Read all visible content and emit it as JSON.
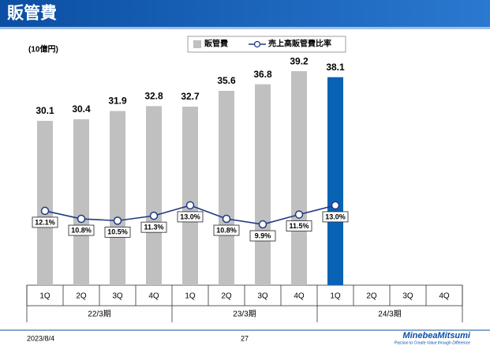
{
  "header": {
    "title": "販管費"
  },
  "chart_data": {
    "type": "bar_line",
    "unit_label": "(10億円)",
    "categories": [
      "1Q",
      "2Q",
      "3Q",
      "4Q",
      "1Q",
      "2Q",
      "3Q",
      "4Q",
      "1Q",
      "2Q",
      "3Q",
      "4Q"
    ],
    "groups": [
      "22/3期",
      "23/3期",
      "24/3期"
    ],
    "series": [
      {
        "name": "販管費",
        "type": "bar",
        "color": "#c0c0c0",
        "colors": [
          "#c0c0c0",
          "#c0c0c0",
          "#c0c0c0",
          "#c0c0c0",
          "#c0c0c0",
          "#c0c0c0",
          "#c0c0c0",
          "#c0c0c0",
          "#0a62b4",
          "#c0c0c0",
          "#c0c0c0",
          "#c0c0c0"
        ],
        "values": [
          30.1,
          30.4,
          31.9,
          32.8,
          32.7,
          35.6,
          36.8,
          39.2,
          38.1,
          null,
          null,
          null
        ]
      },
      {
        "name": "売上高販管費比率",
        "type": "line",
        "axis": "y2",
        "color": "#1f3a85",
        "values": [
          12.1,
          10.8,
          10.5,
          11.3,
          13.0,
          10.8,
          9.9,
          11.5,
          13.0,
          null,
          null,
          null
        ],
        "value_labels": [
          "12.1%",
          "10.8%",
          "10.5%",
          "11.3%",
          "13.0%",
          "10.8%",
          "9.9%",
          "11.5%",
          "13.0%",
          null,
          null,
          null
        ]
      }
    ],
    "ylim": [
      0,
      45
    ],
    "y2lim": [
      0,
      40
    ],
    "grid": false
  },
  "footer": {
    "date": "2023/8/4",
    "page": "27",
    "logo": "MinebeaMitsumi",
    "tagline": "Passion to Create Value through Difference"
  }
}
